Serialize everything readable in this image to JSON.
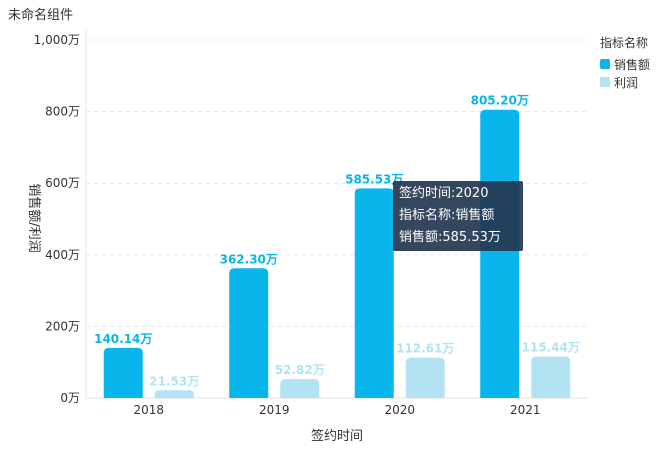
{
  "widget": {
    "title": "未命名组件"
  },
  "colors": {
    "sales": "#0ab5eb",
    "profit": "#b3e3f2",
    "axis_text": "#333333",
    "grid": "#e8e8e8"
  },
  "legend": {
    "title": "指标名称",
    "items": [
      {
        "label": "销售额",
        "color": "#0ab5eb"
      },
      {
        "label": "利润",
        "color": "#b3e3f2"
      }
    ]
  },
  "tooltip": {
    "line1": "签约时间:2020",
    "line2": "指标名称:销售额",
    "line3": "销售额:585.53万"
  },
  "chart_data": {
    "type": "bar",
    "xlabel": "签约时间",
    "ylabel": "销售额/利润",
    "categories": [
      "2018",
      "2019",
      "2020",
      "2021"
    ],
    "y_ticks": [
      "0万",
      "200万",
      "400万",
      "600万",
      "800万",
      "1,000万"
    ],
    "y_tick_values": [
      0,
      200,
      400,
      600,
      800,
      1000
    ],
    "ylim": [
      0,
      1000
    ],
    "unit": "万",
    "grid": true,
    "legend_position": "top-right",
    "series": [
      {
        "name": "销售额",
        "values": [
          140.14,
          362.3,
          585.53,
          805.2
        ],
        "labels": [
          "140.14万",
          "362.30万",
          "585.53万",
          "805.20万"
        ]
      },
      {
        "name": "利润",
        "values": [
          21.53,
          52.82,
          112.61,
          115.44
        ],
        "labels": [
          "21.53万",
          "52.82万",
          "112.61万",
          "115.44万"
        ]
      }
    ]
  }
}
